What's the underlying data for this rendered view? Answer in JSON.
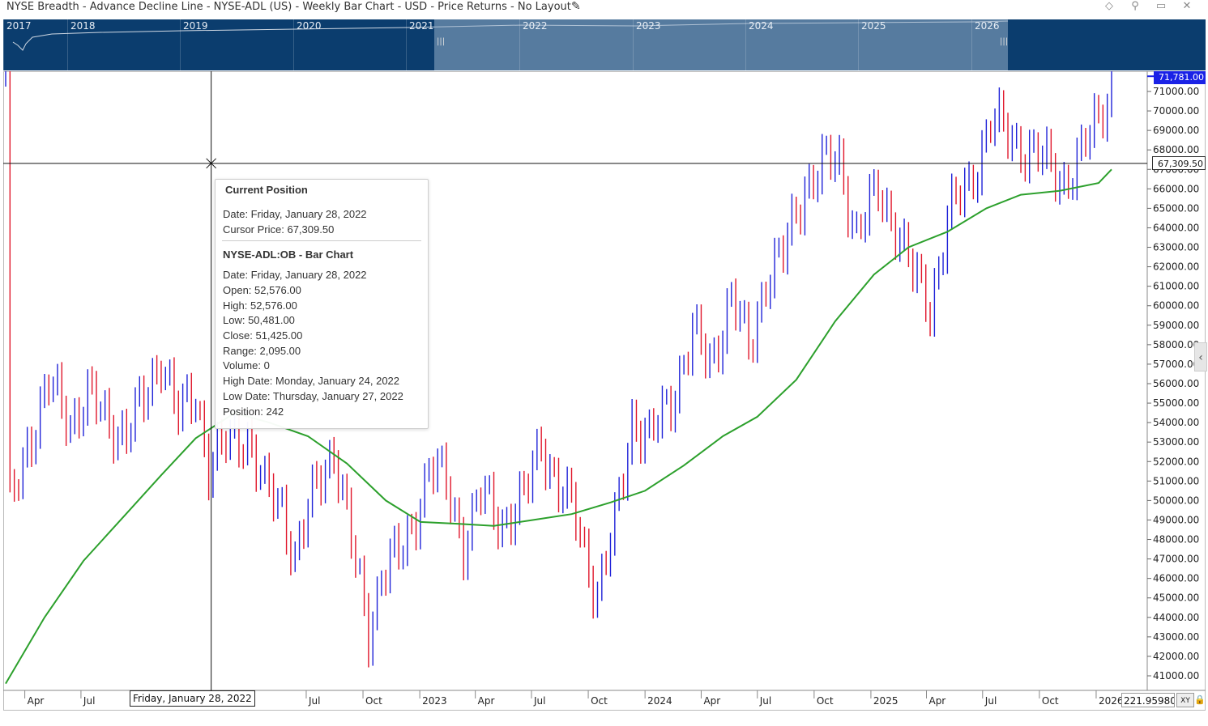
{
  "window": {
    "title": "NYSE Breadth - Advance Decline Line - NYSE-ADL (US) - Weekly Bar Chart - USD - Price Returns - No Layout",
    "edit_icon": "pencil-icon",
    "buttons": [
      "diamond-icon",
      "pin-icon",
      "restore-icon",
      "close-icon"
    ]
  },
  "navigator": {
    "years": [
      "2017",
      "2018",
      "2019",
      "2020",
      "2021",
      "2022",
      "2023",
      "2024",
      "2025",
      "2026"
    ],
    "handle_glyph": "|||"
  },
  "chart_data": {
    "type": "bar",
    "title": "NYSE-ADL:OB - Bar Chart",
    "xlabel": "",
    "ylabel": "",
    "ylim": [
      40400,
      72400
    ],
    "yticks": [
      "71000.00",
      "70000.00",
      "69000.00",
      "68000.00",
      "67000.00",
      "66000.00",
      "65000.00",
      "64000.00",
      "63000.00",
      "62000.00",
      "61000.00",
      "60000.00",
      "59000.00",
      "58000.00",
      "57000.00",
      "56000.00",
      "55000.00",
      "54000.00",
      "53000.00",
      "52000.00",
      "51000.00",
      "50000.00",
      "49000.00",
      "48000.00",
      "47000.00",
      "46000.00",
      "45000.00",
      "44000.00",
      "43000.00",
      "42000.00",
      "41000.00"
    ],
    "xticks": [
      "Apr",
      "Jul",
      "O",
      "Jul",
      "Oct",
      "2023",
      "Apr",
      "Jul",
      "Oct",
      "2024",
      "Apr",
      "Jul",
      "Oct",
      "2025",
      "Apr",
      "Jul",
      "Oct",
      "2026"
    ],
    "x_start": "2021-03-01",
    "x_end": "2026-01-26",
    "up_color": "#1f22d8",
    "down_color": "#e0162b",
    "ma_color": "#2ca02c",
    "series": [
      {
        "name": "OHLC bars",
        "kind": "ohlc",
        "anchors": [
          {
            "date": "2021-03-08",
            "value": 49500
          },
          {
            "date": "2021-04-05",
            "value": 53000
          },
          {
            "date": "2021-05-10",
            "value": 55800
          },
          {
            "date": "2021-06-14",
            "value": 54200
          },
          {
            "date": "2021-07-12",
            "value": 55300
          },
          {
            "date": "2021-08-09",
            "value": 54200
          },
          {
            "date": "2021-09-13",
            "value": 53500
          },
          {
            "date": "2021-10-11",
            "value": 55000
          },
          {
            "date": "2021-11-08",
            "value": 57600
          },
          {
            "date": "2021-12-06",
            "value": 54200
          },
          {
            "date": "2022-01-03",
            "value": 55500
          },
          {
            "date": "2022-01-24",
            "value": 51900
          },
          {
            "date": "2022-02-21",
            "value": 52800
          },
          {
            "date": "2022-03-28",
            "value": 53500
          },
          {
            "date": "2022-04-25",
            "value": 50400
          },
          {
            "date": "2022-05-23",
            "value": 49700
          },
          {
            "date": "2022-06-13",
            "value": 47200
          },
          {
            "date": "2022-07-18",
            "value": 50700
          },
          {
            "date": "2022-08-15",
            "value": 52900
          },
          {
            "date": "2022-09-19",
            "value": 46500
          },
          {
            "date": "2022-10-10",
            "value": 43300
          },
          {
            "date": "2022-10-31",
            "value": 46400
          },
          {
            "date": "2022-12-05",
            "value": 47300
          },
          {
            "date": "2023-01-16",
            "value": 51700
          },
          {
            "date": "2023-02-13",
            "value": 50800
          },
          {
            "date": "2023-03-13",
            "value": 47900
          },
          {
            "date": "2023-04-10",
            "value": 50200
          },
          {
            "date": "2023-05-15",
            "value": 49000
          },
          {
            "date": "2023-06-19",
            "value": 50000
          },
          {
            "date": "2023-07-17",
            "value": 53200
          },
          {
            "date": "2023-08-14",
            "value": 50600
          },
          {
            "date": "2023-09-11",
            "value": 49100
          },
          {
            "date": "2023-10-16",
            "value": 45200
          },
          {
            "date": "2023-11-13",
            "value": 48600
          },
          {
            "date": "2023-12-11",
            "value": 54400
          },
          {
            "date": "2024-01-08",
            "value": 53000
          },
          {
            "date": "2024-02-12",
            "value": 55300
          },
          {
            "date": "2024-03-18",
            "value": 58500
          },
          {
            "date": "2024-04-15",
            "value": 57000
          },
          {
            "date": "2024-05-20",
            "value": 60500
          },
          {
            "date": "2024-06-17",
            "value": 57600
          },
          {
            "date": "2024-07-15",
            "value": 61600
          },
          {
            "date": "2024-08-12",
            "value": 62500
          },
          {
            "date": "2024-09-16",
            "value": 66300
          },
          {
            "date": "2024-10-14",
            "value": 67100
          },
          {
            "date": "2024-11-11",
            "value": 67400
          },
          {
            "date": "2024-12-09",
            "value": 63700
          },
          {
            "date": "2025-01-13",
            "value": 65800
          },
          {
            "date": "2025-02-10",
            "value": 64300
          },
          {
            "date": "2025-03-10",
            "value": 61500
          },
          {
            "date": "2025-04-07",
            "value": 60000
          },
          {
            "date": "2025-05-05",
            "value": 64500
          },
          {
            "date": "2025-06-09",
            "value": 66200
          },
          {
            "date": "2025-07-14",
            "value": 69500
          },
          {
            "date": "2025-08-11",
            "value": 68700
          },
          {
            "date": "2025-09-15",
            "value": 68000
          },
          {
            "date": "2025-10-13",
            "value": 67200
          },
          {
            "date": "2025-11-10",
            "value": 66500
          },
          {
            "date": "2025-12-08",
            "value": 67600
          },
          {
            "date": "2026-01-05",
            "value": 69800
          },
          {
            "date": "2026-01-26",
            "value": 71500
          }
        ]
      },
      {
        "name": "Moving average",
        "kind": "line",
        "points": [
          {
            "date": "2021-03-01",
            "value": 40600
          },
          {
            "date": "2021-05-03",
            "value": 44000
          },
          {
            "date": "2021-07-05",
            "value": 46900
          },
          {
            "date": "2021-09-06",
            "value": 49100
          },
          {
            "date": "2021-11-08",
            "value": 51300
          },
          {
            "date": "2022-01-03",
            "value": 53200
          },
          {
            "date": "2022-03-07",
            "value": 54500
          },
          {
            "date": "2022-05-02",
            "value": 54000
          },
          {
            "date": "2022-07-04",
            "value": 53300
          },
          {
            "date": "2022-09-05",
            "value": 51900
          },
          {
            "date": "2022-11-07",
            "value": 50000
          },
          {
            "date": "2023-01-02",
            "value": 48900
          },
          {
            "date": "2023-03-06",
            "value": 48800
          },
          {
            "date": "2023-05-01",
            "value": 48700
          },
          {
            "date": "2023-07-03",
            "value": 49000
          },
          {
            "date": "2023-09-04",
            "value": 49300
          },
          {
            "date": "2023-11-06",
            "value": 49900
          },
          {
            "date": "2024-01-01",
            "value": 50500
          },
          {
            "date": "2024-03-04",
            "value": 51800
          },
          {
            "date": "2024-05-06",
            "value": 53300
          },
          {
            "date": "2024-07-01",
            "value": 54300
          },
          {
            "date": "2024-09-02",
            "value": 56200
          },
          {
            "date": "2024-11-04",
            "value": 59200
          },
          {
            "date": "2025-01-06",
            "value": 61600
          },
          {
            "date": "2025-03-03",
            "value": 63000
          },
          {
            "date": "2025-05-05",
            "value": 63800
          },
          {
            "date": "2025-07-07",
            "value": 65000
          },
          {
            "date": "2025-09-01",
            "value": 65700
          },
          {
            "date": "2025-11-03",
            "value": 65900
          },
          {
            "date": "2026-01-05",
            "value": 66300
          },
          {
            "date": "2026-01-26",
            "value": 67000
          }
        ]
      }
    ],
    "cursor": {
      "date": "2022-01-28",
      "price": 67309.5
    },
    "last_price": 71781.0,
    "grid": false,
    "legend": "none"
  },
  "labels": {
    "last_price": "71,781.00",
    "cursor_price": "67,309.50",
    "cursor_date": "Friday, January 28, 2022",
    "scale_value": "221.95980",
    "xy_button": "XY",
    "lock_icon": "lock-icon",
    "side_expand": "chevron-left-icon"
  },
  "tooltip": {
    "header": "Current Position",
    "date": "Date: Friday, January 28, 2022",
    "cursor_price": "Cursor Price: 67,309.50",
    "bar_title": "NYSE-ADL:OB - Bar Chart",
    "bar_date": "Date: Friday, January 28, 2022",
    "open": "Open: 52,576.00",
    "high": "High: 52,576.00",
    "low": "Low: 50,481.00",
    "close": "Close: 51,425.00",
    "range": "Range: 2,095.00",
    "volume": "Volume: 0",
    "high_date": "High Date: Monday, January 24, 2022",
    "low_date": "Low Date: Thursday, January 27, 2022",
    "position": "Position: 242"
  }
}
